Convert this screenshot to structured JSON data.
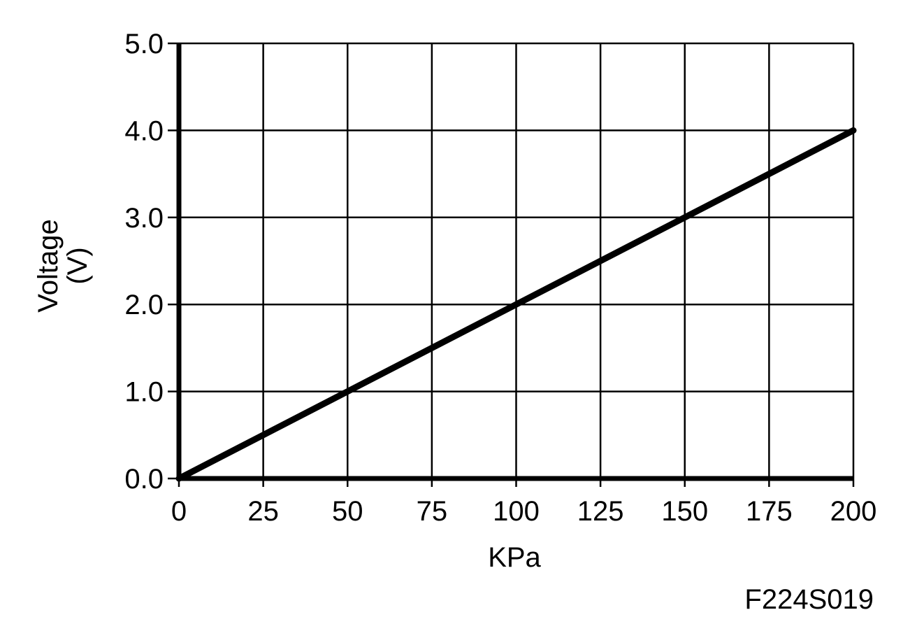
{
  "chart_data": {
    "type": "line",
    "title": "",
    "xlabel": "KPa",
    "ylabel_lines": [
      "Voltage",
      "(V)"
    ],
    "x_ticks": [
      "0",
      "25",
      "50",
      "75",
      "100",
      "125",
      "150",
      "175",
      "200"
    ],
    "y_ticks": [
      "0.0",
      "1.0",
      "2.0",
      "3.0",
      "4.0",
      "5.0"
    ],
    "xlim": [
      0,
      200
    ],
    "ylim": [
      0,
      5
    ],
    "grid": true,
    "series": [
      {
        "x": [
          0,
          200
        ],
        "y": [
          0.0,
          4.0
        ],
        "color": "#000000"
      }
    ]
  },
  "figure_code": "F224S019",
  "colors": {
    "line": "#000000",
    "grid": "#000000",
    "background": "#ffffff"
  }
}
